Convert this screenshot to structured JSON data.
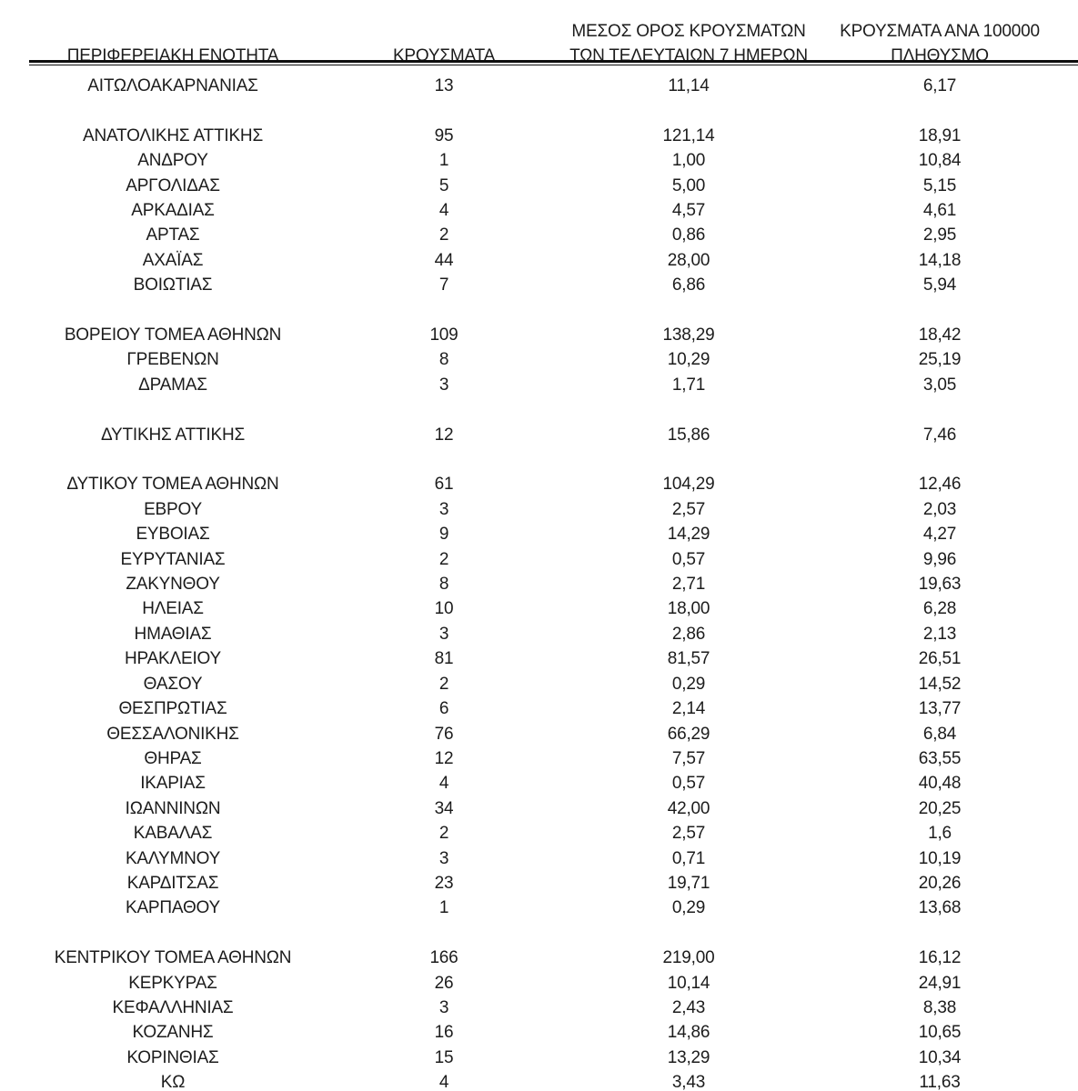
{
  "colors": {
    "background": "#ffffff",
    "text": "#1c1c1c",
    "rule": "#0d0d0d"
  },
  "table": {
    "headers": {
      "region": "ΠΕΡΙΦΕΡΕΙΑΚΗ ΕΝΟΤΗΤΑ",
      "cases": "ΚΡΟΥΣΜΑΤΑ",
      "avg7_line1": "ΜΕΣΟΣ ΟΡΟΣ ΚΡΟΥΣΜΑΤΩΝ",
      "avg7_line2": "ΤΩΝ ΤΕΛΕΥΤΑΙΩΝ 7 ΗΜΕΡΩΝ",
      "per100k_line1": "ΚΡΟΥΣΜΑΤΑ ΑΝΑ 100000",
      "per100k_line2": "ΠΛΗΘΥΣΜΟ"
    },
    "rows": [
      {
        "region": "ΑΙΤΩΛΟΑΚΑΡΝΑΝΙΑΣ",
        "cases": "13",
        "avg7": "11,14",
        "per100k": "6,17"
      },
      {
        "spacer": true
      },
      {
        "region": "ΑΝΑΤΟΛΙΚΗΣ ΑΤΤΙΚΗΣ",
        "cases": "95",
        "avg7": "121,14",
        "per100k": "18,91"
      },
      {
        "region": "ΑΝΔΡΟΥ",
        "cases": "1",
        "avg7": "1,00",
        "per100k": "10,84"
      },
      {
        "region": "ΑΡΓΟΛΙΔΑΣ",
        "cases": "5",
        "avg7": "5,00",
        "per100k": "5,15"
      },
      {
        "region": "ΑΡΚΑΔΙΑΣ",
        "cases": "4",
        "avg7": "4,57",
        "per100k": "4,61"
      },
      {
        "region": "ΑΡΤΑΣ",
        "cases": "2",
        "avg7": "0,86",
        "per100k": "2,95"
      },
      {
        "region": "ΑΧΑΪΑΣ",
        "cases": "44",
        "avg7": "28,00",
        "per100k": "14,18"
      },
      {
        "region": "ΒΟΙΩΤΙΑΣ",
        "cases": "7",
        "avg7": "6,86",
        "per100k": "5,94"
      },
      {
        "spacer": true
      },
      {
        "region": "ΒΟΡΕΙΟΥ ΤΟΜΕΑ ΑΘΗΝΩΝ",
        "cases": "109",
        "avg7": "138,29",
        "per100k": "18,42"
      },
      {
        "region": "ΓΡΕΒΕΝΩΝ",
        "cases": "8",
        "avg7": "10,29",
        "per100k": "25,19"
      },
      {
        "region": "ΔΡΑΜΑΣ",
        "cases": "3",
        "avg7": "1,71",
        "per100k": "3,05"
      },
      {
        "spacer": true
      },
      {
        "region": "ΔΥΤΙΚΗΣ ΑΤΤΙΚΗΣ",
        "cases": "12",
        "avg7": "15,86",
        "per100k": "7,46"
      },
      {
        "spacer": true
      },
      {
        "region": "ΔΥΤΙΚΟΥ ΤΟΜΕΑ ΑΘΗΝΩΝ",
        "cases": "61",
        "avg7": "104,29",
        "per100k": "12,46"
      },
      {
        "region": "ΕΒΡΟΥ",
        "cases": "3",
        "avg7": "2,57",
        "per100k": "2,03"
      },
      {
        "region": "ΕΥΒΟΙΑΣ",
        "cases": "9",
        "avg7": "14,29",
        "per100k": "4,27"
      },
      {
        "region": "ΕΥΡΥΤΑΝΙΑΣ",
        "cases": "2",
        "avg7": "0,57",
        "per100k": "9,96"
      },
      {
        "region": "ΖΑΚΥΝΘΟΥ",
        "cases": "8",
        "avg7": "2,71",
        "per100k": "19,63"
      },
      {
        "region": "ΗΛΕΙΑΣ",
        "cases": "10",
        "avg7": "18,00",
        "per100k": "6,28"
      },
      {
        "region": "ΗΜΑΘΙΑΣ",
        "cases": "3",
        "avg7": "2,86",
        "per100k": "2,13"
      },
      {
        "region": "ΗΡΑΚΛΕΙΟΥ",
        "cases": "81",
        "avg7": "81,57",
        "per100k": "26,51"
      },
      {
        "region": "ΘΑΣΟΥ",
        "cases": "2",
        "avg7": "0,29",
        "per100k": "14,52"
      },
      {
        "region": "ΘΕΣΠΡΩΤΙΑΣ",
        "cases": "6",
        "avg7": "2,14",
        "per100k": "13,77"
      },
      {
        "region": "ΘΕΣΣΑΛΟΝΙΚΗΣ",
        "cases": "76",
        "avg7": "66,29",
        "per100k": "6,84"
      },
      {
        "region": "ΘΗΡΑΣ",
        "cases": "12",
        "avg7": "7,57",
        "per100k": "63,55"
      },
      {
        "region": "ΙΚΑΡΙΑΣ",
        "cases": "4",
        "avg7": "0,57",
        "per100k": "40,48"
      },
      {
        "region": "ΙΩΑΝΝΙΝΩΝ",
        "cases": "34",
        "avg7": "42,00",
        "per100k": "20,25"
      },
      {
        "region": "ΚΑΒΑΛΑΣ",
        "cases": "2",
        "avg7": "2,57",
        "per100k": "1,6"
      },
      {
        "region": "ΚΑΛΥΜΝΟΥ",
        "cases": "3",
        "avg7": "0,71",
        "per100k": "10,19"
      },
      {
        "region": "ΚΑΡΔΙΤΣΑΣ",
        "cases": "23",
        "avg7": "19,71",
        "per100k": "20,26"
      },
      {
        "region": "ΚΑΡΠΑΘΟΥ",
        "cases": "1",
        "avg7": "0,29",
        "per100k": "13,68"
      },
      {
        "spacer": true
      },
      {
        "region": "ΚΕΝΤΡΙΚΟΥ ΤΟΜΕΑ ΑΘΗΝΩΝ",
        "cases": "166",
        "avg7": "219,00",
        "per100k": "16,12"
      },
      {
        "region": "ΚΕΡΚΥΡΑΣ",
        "cases": "26",
        "avg7": "10,14",
        "per100k": "24,91"
      },
      {
        "region": "ΚΕΦΑΛΛΗΝΙΑΣ",
        "cases": "3",
        "avg7": "2,43",
        "per100k": "8,38"
      },
      {
        "region": "ΚΟΖΑΝΗΣ",
        "cases": "16",
        "avg7": "14,86",
        "per100k": "10,65"
      },
      {
        "region": "ΚΟΡΙΝΘΙΑΣ",
        "cases": "15",
        "avg7": "13,29",
        "per100k": "10,34"
      },
      {
        "region": "ΚΩ",
        "cases": "4",
        "avg7": "3,43",
        "per100k": "11,63"
      }
    ]
  }
}
